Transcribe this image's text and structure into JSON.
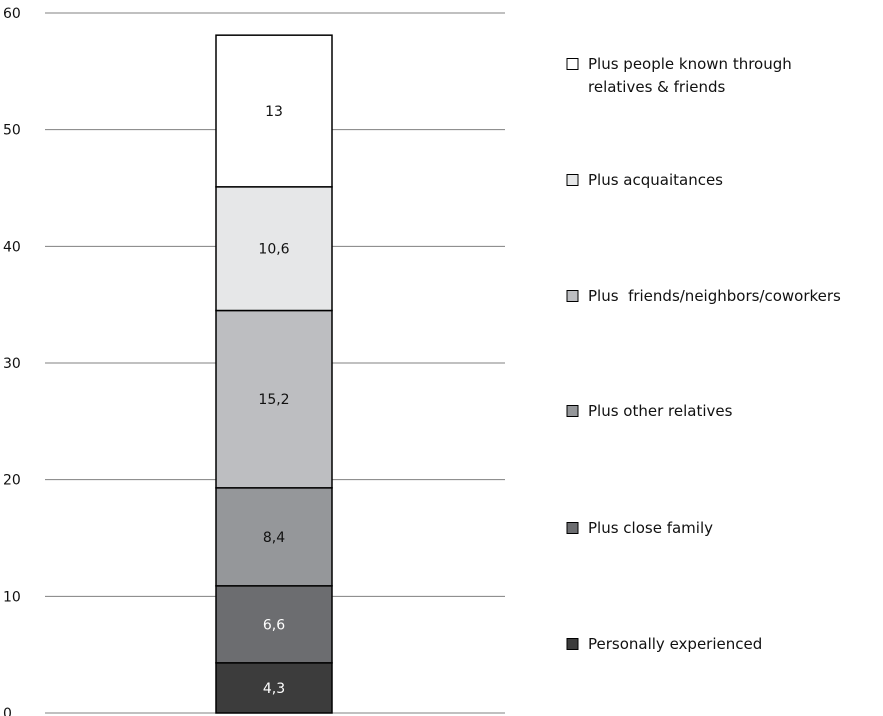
{
  "chart_data": {
    "type": "bar",
    "stacked": true,
    "categories": [
      ""
    ],
    "ylim": [
      0,
      60
    ],
    "yticks": [
      0,
      10,
      20,
      30,
      40,
      50,
      60
    ],
    "grid": true,
    "legend_position": "right",
    "series": [
      {
        "name": "Personally experienced",
        "values": [
          4.3
        ],
        "label": "4,3",
        "color": "#3c3c3c",
        "text_color": "#ffffff"
      },
      {
        "name": "Plus close family",
        "values": [
          6.6
        ],
        "label": "6,6",
        "color": "#6c6d70",
        "text_color": "#ffffff"
      },
      {
        "name": "Plus other relatives",
        "values": [
          8.4
        ],
        "label": "8,4",
        "color": "#95979a",
        "text_color": "#111111"
      },
      {
        "name": "Plus  friends/neighbors/coworkers",
        "values": [
          15.2
        ],
        "label": "15,2",
        "color": "#bdbec1",
        "text_color": "#111111"
      },
      {
        "name": "Plus acquaitances",
        "values": [
          10.6
        ],
        "label": "10,6",
        "color": "#e6e7e8",
        "text_color": "#111111"
      },
      {
        "name": "Plus people known through relatives & friends",
        "name_lines": [
          "Plus people known through",
          "relatives & friends"
        ],
        "values": [
          13
        ],
        "label": "13",
        "color": "#ffffff",
        "text_color": "#111111"
      }
    ]
  }
}
